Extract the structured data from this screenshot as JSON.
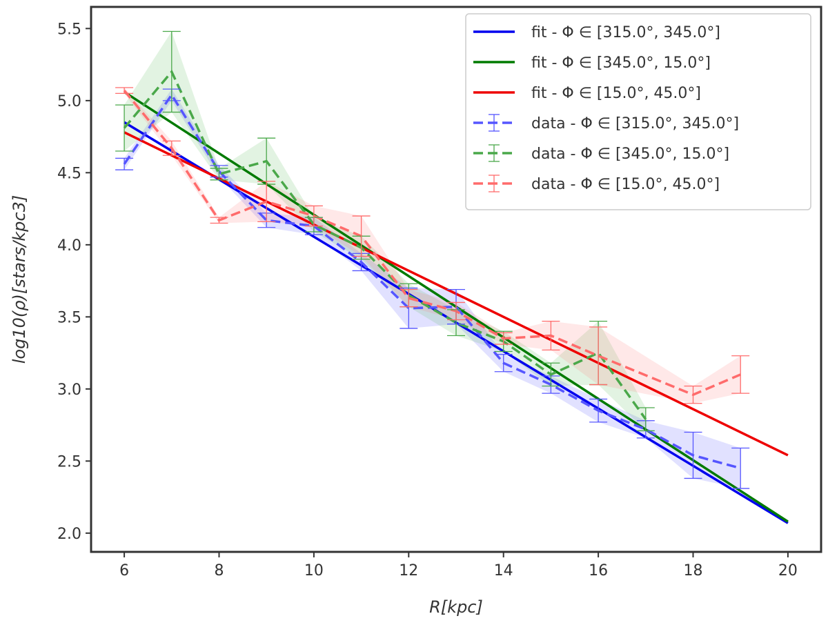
{
  "chart_data": {
    "type": "line",
    "xlabel": "R[kpc]",
    "ylabel": "log10(ρ)[stars/kpc3]",
    "xlim": [
      5.3,
      20.7
    ],
    "ylim": [
      1.87,
      5.65
    ],
    "xticks": [
      6,
      8,
      10,
      12,
      14,
      16,
      18,
      20
    ],
    "yticks": [
      2.0,
      2.5,
      3.0,
      3.5,
      4.0,
      4.5,
      5.0,
      5.5
    ],
    "xtick_labels": [
      "6",
      "8",
      "10",
      "12",
      "14",
      "16",
      "18",
      "20"
    ],
    "ytick_labels": [
      "2.0",
      "2.5",
      "3.0",
      "3.5",
      "4.0",
      "4.5",
      "5.0",
      "5.5"
    ],
    "legend_position": "top-right",
    "fits": [
      {
        "name": "fit - Φ ∈ [315.0°, 345.0°]",
        "color": "#0000ee",
        "x": [
          6,
          20
        ],
        "y": [
          4.85,
          2.07
        ]
      },
      {
        "name": "fit - Φ ∈ [345.0°, 15.0°]",
        "color": "#007a00",
        "x": [
          6,
          20
        ],
        "y": [
          5.06,
          2.08
        ]
      },
      {
        "name": "fit - Φ ∈ [15.0°, 45.0°]",
        "color": "#ee0000",
        "x": [
          6,
          20
        ],
        "y": [
          4.78,
          2.54
        ]
      }
    ],
    "series": [
      {
        "name": "data - Φ ∈ [315.0°, 345.0°]",
        "color": "#5555ff",
        "fill": "#5a5aff",
        "x": [
          6,
          7,
          8,
          9,
          10,
          11,
          12,
          13,
          14,
          15,
          16,
          17,
          18,
          19
        ],
        "y": [
          4.56,
          5.04,
          4.51,
          4.17,
          4.13,
          3.88,
          3.56,
          3.57,
          3.18,
          3.03,
          2.85,
          2.72,
          2.54,
          2.45
        ],
        "err": [
          0.04,
          0.04,
          0.04,
          0.05,
          0.06,
          0.06,
          0.14,
          0.12,
          0.06,
          0.06,
          0.08,
          0.06,
          0.16,
          0.14
        ]
      },
      {
        "name": "data - Φ ∈ [345.0°, 15.0°]",
        "color": "#4aa84a",
        "fill": "#5fbf5f",
        "x": [
          6,
          7,
          8,
          9,
          10,
          11,
          12,
          13,
          14,
          15,
          16,
          17
        ],
        "y": [
          4.81,
          5.2,
          4.49,
          4.58,
          4.14,
          3.98,
          3.65,
          3.46,
          3.33,
          3.1,
          3.25,
          2.79
        ],
        "err": [
          0.16,
          0.28,
          0.04,
          0.16,
          0.05,
          0.08,
          0.08,
          0.09,
          0.07,
          0.08,
          0.22,
          0.08
        ]
      },
      {
        "name": "data - Φ ∈ [15.0°, 45.0°]",
        "color": "#ff6b6b",
        "fill": "#ff8080",
        "x": [
          6,
          7,
          8,
          9,
          10,
          11,
          12,
          13,
          14,
          15,
          16,
          18,
          19
        ],
        "y": [
          5.07,
          4.67,
          4.17,
          4.3,
          4.2,
          4.06,
          3.63,
          3.54,
          3.35,
          3.37,
          3.23,
          2.96,
          3.1
        ],
        "err": [
          0.02,
          0.05,
          0.02,
          0.14,
          0.07,
          0.14,
          0.06,
          0.06,
          0.04,
          0.1,
          0.2,
          0.06,
          0.13
        ]
      }
    ]
  }
}
